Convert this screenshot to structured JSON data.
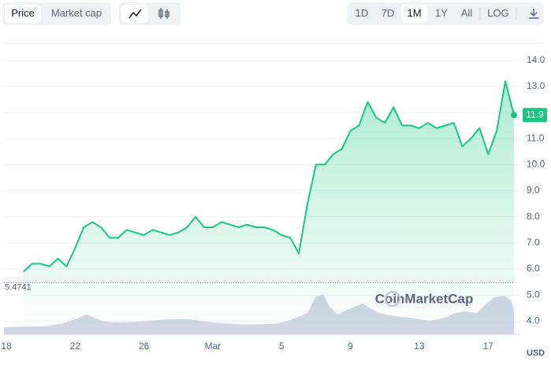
{
  "toolbar": {
    "metrics": [
      "Price",
      "Market cap"
    ],
    "ranges": [
      "1D",
      "7D",
      "1M",
      "1Y",
      "All",
      "LOG"
    ],
    "selected_metric": "Price",
    "selected_range": "1M"
  },
  "chart_data": {
    "type": "line",
    "color": "#16c784",
    "currency": "USD",
    "watermark": "CoinMarketCap",
    "categories": [
      "18",
      null,
      null,
      null,
      null,
      null,
      null,
      null,
      "22",
      null,
      null,
      null,
      null,
      null,
      null,
      null,
      "26",
      null,
      null,
      null,
      null,
      null,
      null,
      null,
      "Mar",
      null,
      null,
      null,
      null,
      null,
      null,
      null,
      "5",
      null,
      null,
      null,
      null,
      null,
      null,
      null,
      "9",
      null,
      null,
      null,
      null,
      null,
      null,
      null,
      "13",
      null,
      null,
      null,
      null,
      null,
      null,
      null,
      "17",
      null,
      null,
      null
    ],
    "series": [
      {
        "name": "Price",
        "color": "#16c784",
        "values": [
          null,
          null,
          5.9,
          6.2,
          6.2,
          6.1,
          6.4,
          6.1,
          6.8,
          7.6,
          7.8,
          7.6,
          7.2,
          7.2,
          7.5,
          7.4,
          7.3,
          7.5,
          7.4,
          7.3,
          7.4,
          7.6,
          8.0,
          7.6,
          7.6,
          7.8,
          7.7,
          7.6,
          7.7,
          7.6,
          7.6,
          7.5,
          7.3,
          7.2,
          6.6,
          8.5,
          10.0,
          10.0,
          10.4,
          10.6,
          11.3,
          11.5,
          12.4,
          11.8,
          11.6,
          12.2,
          11.5,
          11.5,
          11.4,
          11.6,
          11.4,
          11.5,
          11.6,
          10.7,
          11.0,
          11.4,
          10.4,
          11.3,
          13.2,
          11.9
        ]
      }
    ],
    "ylim": [
      3.5,
      14.5
    ],
    "yticks": [
      {
        "value": 4,
        "label": "4.0"
      },
      {
        "value": 5,
        "label": "5.0"
      },
      {
        "value": 6,
        "label": "6.0"
      },
      {
        "value": 7,
        "label": "7.0"
      },
      {
        "value": 8,
        "label": "8.0"
      },
      {
        "value": 9,
        "label": "9.0"
      },
      {
        "value": 10,
        "label": "10.0"
      },
      {
        "value": 11,
        "label": "11.0"
      },
      {
        "value": 12,
        "label": "12.0"
      },
      {
        "value": 13,
        "label": "13.0"
      },
      {
        "value": 14,
        "label": "14.0"
      }
    ],
    "reference_value": 5.4741,
    "last_price": 11.9,
    "grid": true
  }
}
